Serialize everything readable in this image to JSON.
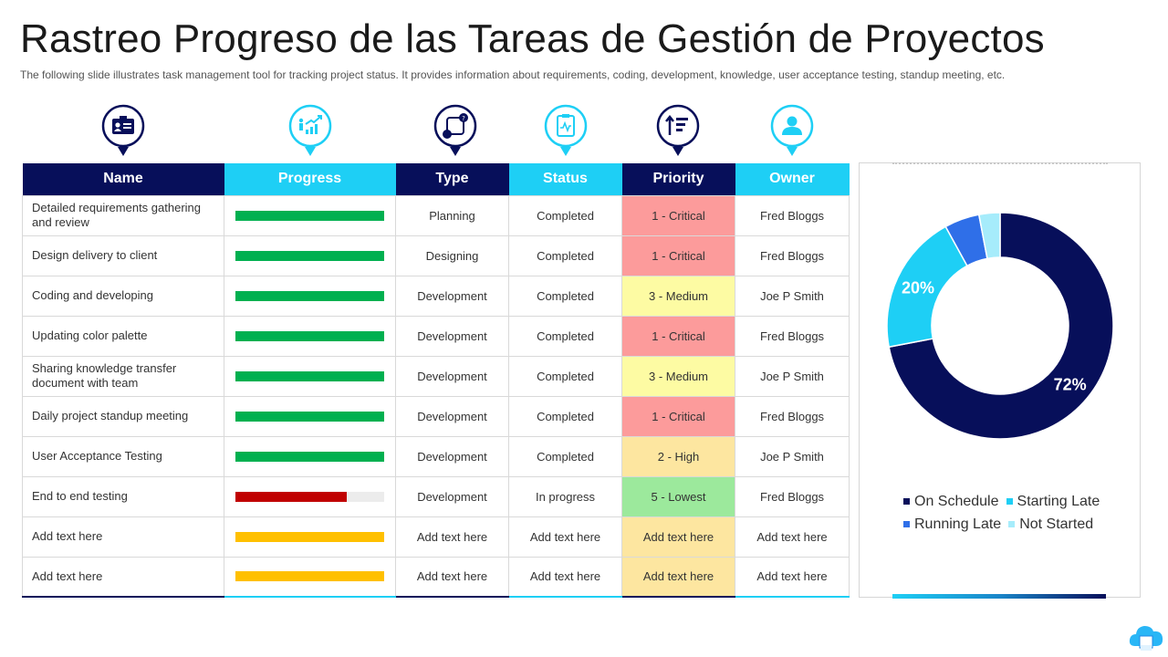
{
  "title": "Rastreo Progreso de las Tareas de Gestión de Proyectos",
  "subtitle": "The following slide illustrates task management tool for tracking project status. It provides information about requirements, coding, development, knowledge, user acceptance testing, standup meeting, etc.",
  "colors": {
    "navy": "#070f5a",
    "cyan": "#1ecff5",
    "progress_green": "#00b050",
    "progress_red": "#c00000",
    "progress_amber": "#ffc000"
  },
  "icons": [
    "id-card-icon",
    "growth-chart-icon",
    "workflow-icon",
    "clipboard-status-icon",
    "priority-sort-icon",
    "user-icon"
  ],
  "table": {
    "headers": {
      "name": "Name",
      "progress": "Progress",
      "type": "Type",
      "status": "Status",
      "priority": "Priority",
      "owner": "Owner"
    },
    "rows": [
      {
        "name": "Detailed requirements gathering and review",
        "progress": 1.0,
        "progress_color": "#00b050",
        "type": "Planning",
        "status": "Completed",
        "priority": "1 -  Critical",
        "priority_level": "critical",
        "owner": "Fred Bloggs"
      },
      {
        "name": "Design delivery to client",
        "progress": 1.0,
        "progress_color": "#00b050",
        "type": "Designing",
        "status": "Completed",
        "priority": "1 -  Critical",
        "priority_level": "critical",
        "owner": "Fred Bloggs"
      },
      {
        "name": "Coding and developing",
        "progress": 1.0,
        "progress_color": "#00b050",
        "type": "Development",
        "status": "Completed",
        "priority": "3 - Medium",
        "priority_level": "medium",
        "owner": "Joe P Smith"
      },
      {
        "name": "Updating color palette",
        "progress": 1.0,
        "progress_color": "#00b050",
        "type": "Development",
        "status": "Completed",
        "priority": "1 -  Critical",
        "priority_level": "critical",
        "owner": "Fred Bloggs"
      },
      {
        "name": "Sharing knowledge transfer document with team",
        "progress": 1.0,
        "progress_color": "#00b050",
        "type": "Development",
        "status": "Completed",
        "priority": "3 - Medium",
        "priority_level": "medium",
        "owner": "Joe P Smith"
      },
      {
        "name": "Daily project standup meeting",
        "progress": 1.0,
        "progress_color": "#00b050",
        "type": "Development",
        "status": "Completed",
        "priority": "1 -  Critical",
        "priority_level": "critical",
        "owner": "Fred Bloggs"
      },
      {
        "name": "User Acceptance Testing",
        "progress": 1.0,
        "progress_color": "#00b050",
        "type": "Development",
        "status": "Completed",
        "priority": "2 -  High",
        "priority_level": "high",
        "owner": "Joe P Smith"
      },
      {
        "name": "End to end testing",
        "progress": 0.75,
        "progress_color": "#c00000",
        "type": "Development",
        "status": "In progress",
        "priority": "5 -  Lowest",
        "priority_level": "lowest",
        "owner": "Fred Bloggs"
      },
      {
        "name": "Add text here",
        "progress": 1.0,
        "progress_color": "#ffc000",
        "type": "Add text here",
        "status": "Add text here",
        "priority": "Add text here",
        "priority_level": "high",
        "owner": "Add text here"
      },
      {
        "name": "Add text here",
        "progress": 1.0,
        "progress_color": "#ffc000",
        "type": "Add text here",
        "status": "Add text here",
        "priority": "Add text here",
        "priority_level": "high",
        "owner": "Add text here"
      }
    ]
  },
  "chart_data": {
    "type": "pie",
    "variant": "donut",
    "title": "",
    "categories": [
      "On Schedule",
      "Starting Late",
      "Running Late",
      "Not Started"
    ],
    "values": [
      72,
      20,
      5,
      3
    ],
    "colors": [
      "#070f5a",
      "#1ecff5",
      "#2f6fe8",
      "#a6ecfb"
    ],
    "data_labels": {
      "On Schedule": "72%",
      "Starting Late": "20%"
    },
    "legend_position": "bottom"
  }
}
